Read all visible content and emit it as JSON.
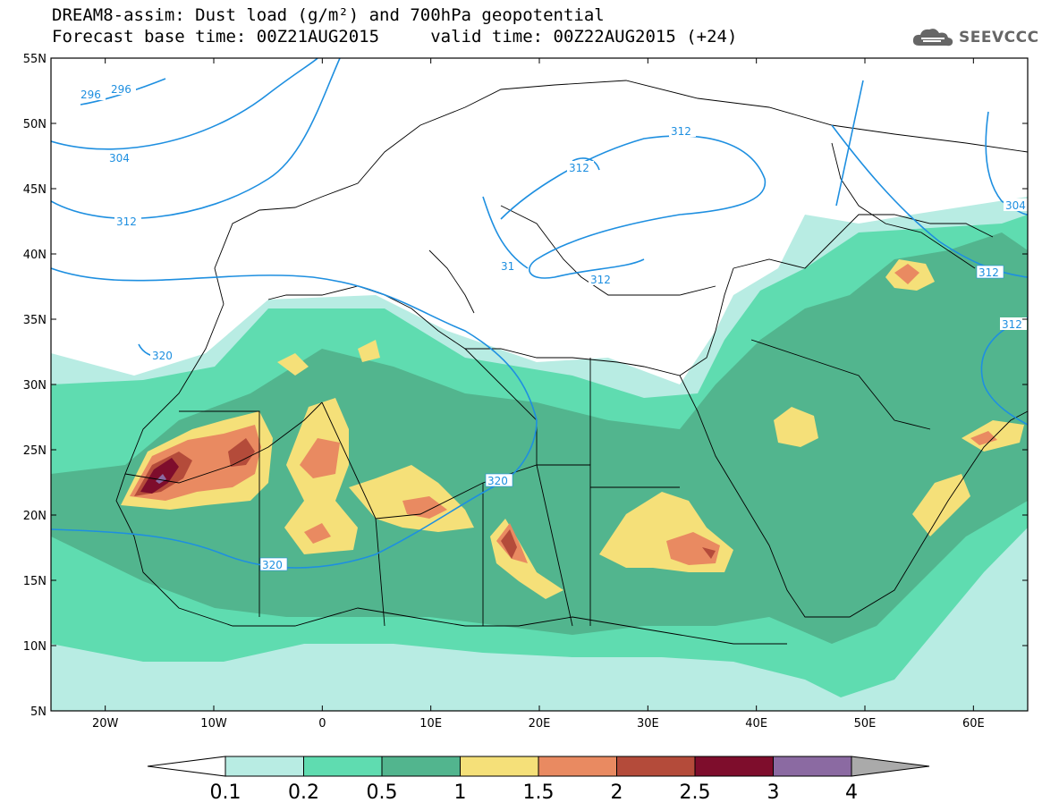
{
  "header": {
    "title_line1": "DREAM8-assim: Dust load (g/m²) and 700hPa geopotential",
    "title_line2": "Forecast base time: 00Z21AUG2015     valid time: 00Z22AUG2015 (+24)",
    "logo_text": "SEEVCCC"
  },
  "map": {
    "lat_labels": [
      "55N",
      "50N",
      "45N",
      "40N",
      "35N",
      "30N",
      "25N",
      "20N",
      "15N",
      "10N",
      "5N"
    ],
    "lon_labels": [
      "20W",
      "10W",
      "0",
      "10E",
      "20E",
      "30E",
      "40E",
      "50E",
      "60E"
    ],
    "contour_labels": [
      "296",
      "296",
      "304",
      "312",
      "312",
      "312",
      "320",
      "320",
      "320",
      "312",
      "312",
      "304",
      "31",
      "312"
    ],
    "contour_color": "#1e8fe0",
    "coastline_color": "#000000"
  },
  "colorbar": {
    "labels": [
      "0.1",
      "0.2",
      "0.5",
      "1",
      "1.5",
      "2",
      "2.5",
      "3",
      "4"
    ],
    "colors": [
      "#ffffff",
      "#b8ece3",
      "#5fdcb0",
      "#52b58e",
      "#f5e079",
      "#e98a61",
      "#b44b3a",
      "#7e0d2c",
      "#8b6aa2",
      "#aaaaaa"
    ]
  }
}
